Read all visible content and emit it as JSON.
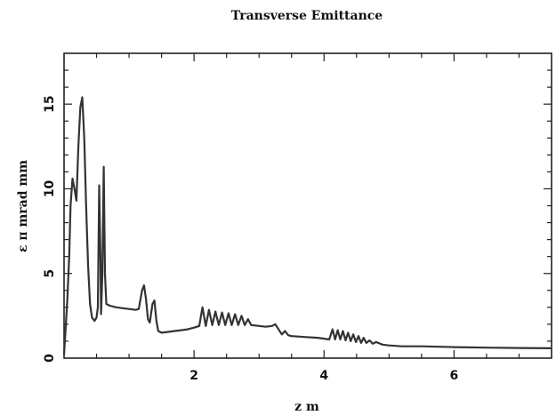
{
  "chart_data": {
    "type": "line",
    "title": "Transverse Emittance",
    "xlabel": "z m",
    "ylabel": "ε π mrad mm",
    "xlim": [
      0,
      7.5
    ],
    "ylim": [
      0,
      18
    ],
    "x_ticks": [
      2,
      4,
      6
    ],
    "y_ticks": [
      0,
      5,
      10,
      15
    ],
    "x_tick_labels": [
      "2",
      "4",
      "6"
    ],
    "y_tick_labels": [
      "0",
      "5",
      "10",
      "15"
    ],
    "grid": false,
    "legend": "none",
    "line_color": "#333333",
    "series": [
      {
        "points": [
          [
            0.0,
            0.2
          ],
          [
            0.02,
            1.5
          ],
          [
            0.05,
            3.5
          ],
          [
            0.08,
            6.0
          ],
          [
            0.1,
            9.0
          ],
          [
            0.13,
            10.6
          ],
          [
            0.16,
            10.0
          ],
          [
            0.19,
            9.3
          ],
          [
            0.22,
            12.5
          ],
          [
            0.25,
            14.8
          ],
          [
            0.28,
            15.4
          ],
          [
            0.31,
            13.0
          ],
          [
            0.34,
            9.0
          ],
          [
            0.37,
            5.5
          ],
          [
            0.4,
            3.2
          ],
          [
            0.43,
            2.4
          ],
          [
            0.47,
            2.2
          ],
          [
            0.5,
            2.4
          ],
          [
            0.52,
            3.0
          ],
          [
            0.54,
            10.2
          ],
          [
            0.56,
            6.0
          ],
          [
            0.57,
            2.6
          ],
          [
            0.59,
            5.0
          ],
          [
            0.61,
            11.3
          ],
          [
            0.63,
            5.0
          ],
          [
            0.65,
            3.2
          ],
          [
            0.7,
            3.1
          ],
          [
            0.8,
            3.0
          ],
          [
            0.9,
            2.95
          ],
          [
            1.0,
            2.9
          ],
          [
            1.1,
            2.85
          ],
          [
            1.15,
            2.9
          ],
          [
            1.2,
            4.0
          ],
          [
            1.23,
            4.3
          ],
          [
            1.26,
            3.5
          ],
          [
            1.29,
            2.3
          ],
          [
            1.32,
            2.1
          ],
          [
            1.36,
            3.2
          ],
          [
            1.39,
            3.4
          ],
          [
            1.42,
            2.2
          ],
          [
            1.45,
            1.6
          ],
          [
            1.5,
            1.5
          ],
          [
            1.6,
            1.55
          ],
          [
            1.7,
            1.6
          ],
          [
            1.8,
            1.65
          ],
          [
            1.9,
            1.7
          ],
          [
            2.0,
            1.8
          ],
          [
            2.08,
            1.9
          ],
          [
            2.13,
            3.0
          ],
          [
            2.18,
            1.9
          ],
          [
            2.23,
            2.85
          ],
          [
            2.28,
            1.95
          ],
          [
            2.33,
            2.75
          ],
          [
            2.38,
            1.95
          ],
          [
            2.43,
            2.7
          ],
          [
            2.48,
            1.95
          ],
          [
            2.53,
            2.65
          ],
          [
            2.58,
            1.95
          ],
          [
            2.63,
            2.6
          ],
          [
            2.68,
            1.95
          ],
          [
            2.73,
            2.5
          ],
          [
            2.78,
            1.95
          ],
          [
            2.83,
            2.3
          ],
          [
            2.88,
            1.95
          ],
          [
            3.0,
            1.9
          ],
          [
            3.1,
            1.85
          ],
          [
            3.2,
            1.9
          ],
          [
            3.25,
            2.0
          ],
          [
            3.3,
            1.7
          ],
          [
            3.35,
            1.4
          ],
          [
            3.4,
            1.6
          ],
          [
            3.45,
            1.35
          ],
          [
            3.5,
            1.3
          ],
          [
            3.7,
            1.25
          ],
          [
            3.9,
            1.2
          ],
          [
            4.0,
            1.15
          ],
          [
            4.08,
            1.1
          ],
          [
            4.13,
            1.7
          ],
          [
            4.17,
            1.1
          ],
          [
            4.21,
            1.65
          ],
          [
            4.25,
            1.1
          ],
          [
            4.29,
            1.6
          ],
          [
            4.33,
            1.05
          ],
          [
            4.37,
            1.5
          ],
          [
            4.41,
            1.0
          ],
          [
            4.45,
            1.4
          ],
          [
            4.49,
            0.95
          ],
          [
            4.53,
            1.3
          ],
          [
            4.57,
            0.9
          ],
          [
            4.61,
            1.2
          ],
          [
            4.65,
            0.9
          ],
          [
            4.7,
            1.05
          ],
          [
            4.75,
            0.85
          ],
          [
            4.8,
            0.95
          ],
          [
            4.9,
            0.8
          ],
          [
            5.0,
            0.75
          ],
          [
            5.2,
            0.7
          ],
          [
            5.5,
            0.7
          ],
          [
            6.0,
            0.65
          ],
          [
            6.5,
            0.62
          ],
          [
            7.0,
            0.6
          ],
          [
            7.5,
            0.58
          ]
        ]
      }
    ]
  }
}
